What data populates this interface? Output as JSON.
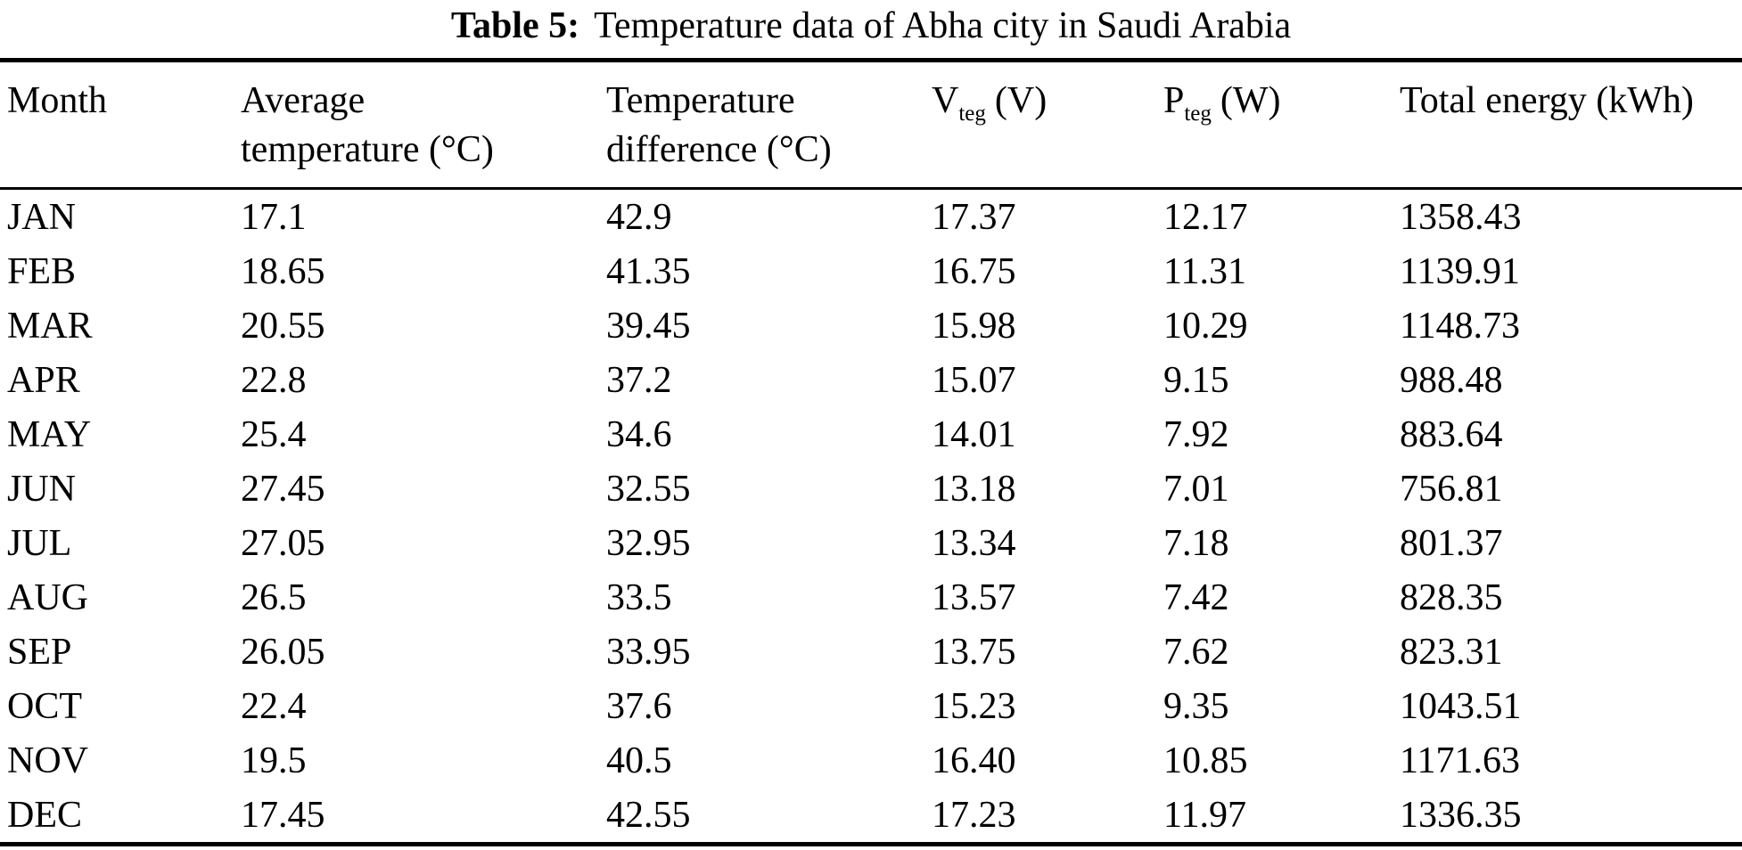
{
  "caption": {
    "label": "Table 5:",
    "title": "Temperature data of Abha city in Saudi Arabia"
  },
  "table": {
    "headers": {
      "month": "Month",
      "avg_temp_line1": "Average",
      "avg_temp_line2": "temperature (°C)",
      "temp_diff_line1": "Temperature",
      "temp_diff_line2": "difference (°C)",
      "v_teg_main": "V",
      "v_teg_sub": "teg",
      "v_teg_unit": "(V)",
      "p_teg_main": "P",
      "p_teg_sub": "teg",
      "p_teg_unit": "(W)",
      "total_energy": "Total energy (kWh)"
    },
    "rows": [
      [
        "JAN",
        "17.1",
        "42.9",
        "17.37",
        "12.17",
        "1358.43"
      ],
      [
        "FEB",
        "18.65",
        "41.35",
        "16.75",
        "11.31",
        "1139.91"
      ],
      [
        "MAR",
        "20.55",
        "39.45",
        "15.98",
        "10.29",
        "1148.73"
      ],
      [
        "APR",
        "22.8",
        "37.2",
        "15.07",
        "9.15",
        "988.48"
      ],
      [
        "MAY",
        "25.4",
        "34.6",
        "14.01",
        "7.92",
        "883.64"
      ],
      [
        "JUN",
        "27.45",
        "32.55",
        "13.18",
        "7.01",
        "756.81"
      ],
      [
        "JUL",
        "27.05",
        "32.95",
        "13.34",
        "7.18",
        "801.37"
      ],
      [
        "AUG",
        "26.5",
        "33.5",
        "13.57",
        "7.42",
        "828.35"
      ],
      [
        "SEP",
        "26.05",
        "33.95",
        "13.75",
        "7.62",
        "823.31"
      ],
      [
        "OCT",
        "22.4",
        "37.6",
        "15.23",
        "9.35",
        "1043.51"
      ],
      [
        "NOV",
        "19.5",
        "40.5",
        "16.40",
        "10.85",
        "1171.63"
      ],
      [
        "DEC",
        "17.45",
        "42.55",
        "17.23",
        "11.97",
        "1336.35"
      ]
    ]
  }
}
